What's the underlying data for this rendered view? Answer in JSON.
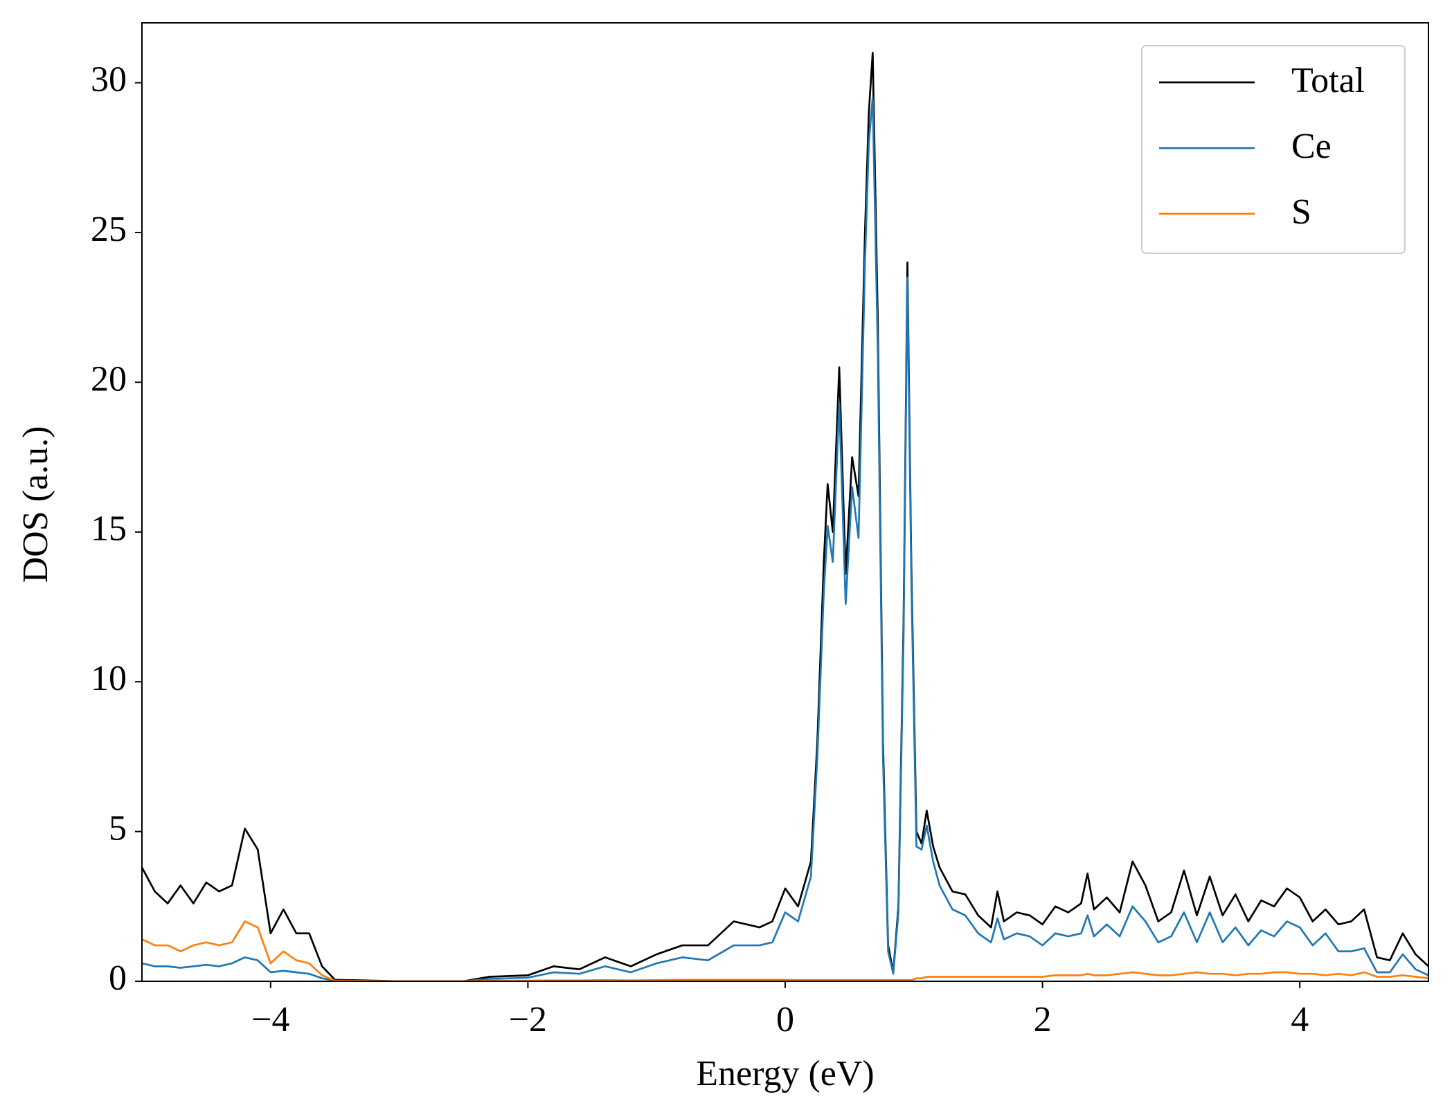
{
  "chart_data": {
    "type": "line",
    "xlabel": "Energy (eV)",
    "ylabel": "DOS (a.u.)",
    "x": [
      -5.0,
      -4.9,
      -4.8,
      -4.7,
      -4.6,
      -4.5,
      -4.4,
      -4.3,
      -4.2,
      -4.1,
      -4.0,
      -3.9,
      -3.8,
      -3.7,
      -3.6,
      -3.5,
      -3.0,
      -2.5,
      -2.3,
      -2.0,
      -1.8,
      -1.6,
      -1.4,
      -1.2,
      -1.0,
      -0.8,
      -0.6,
      -0.4,
      -0.2,
      -0.1,
      0.0,
      0.1,
      0.2,
      0.25,
      0.3,
      0.33,
      0.37,
      0.42,
      0.47,
      0.52,
      0.57,
      0.62,
      0.65,
      0.68,
      0.72,
      0.76,
      0.8,
      0.84,
      0.88,
      0.92,
      0.95,
      0.98,
      1.02,
      1.06,
      1.1,
      1.15,
      1.2,
      1.3,
      1.4,
      1.5,
      1.6,
      1.65,
      1.7,
      1.8,
      1.9,
      2.0,
      2.1,
      2.2,
      2.3,
      2.35,
      2.4,
      2.5,
      2.6,
      2.7,
      2.8,
      2.9,
      3.0,
      3.1,
      3.2,
      3.3,
      3.4,
      3.5,
      3.6,
      3.7,
      3.8,
      3.9,
      4.0,
      4.1,
      4.2,
      4.3,
      4.4,
      4.5,
      4.6,
      4.7,
      4.8,
      4.9,
      5.0
    ],
    "series": [
      {
        "name": "Total",
        "color": "#000000",
        "values": [
          3.8,
          3.0,
          2.6,
          3.2,
          2.6,
          3.3,
          3.0,
          3.2,
          5.1,
          4.4,
          1.6,
          2.4,
          1.6,
          1.6,
          0.5,
          0.05,
          0,
          0,
          0.15,
          0.2,
          0.5,
          0.4,
          0.8,
          0.5,
          0.9,
          1.2,
          1.2,
          2.0,
          1.8,
          2.0,
          3.1,
          2.5,
          4.0,
          8,
          14,
          16.6,
          15.0,
          20.5,
          13.6,
          17.5,
          16.2,
          25,
          29,
          31.0,
          22,
          8,
          1.2,
          0.3,
          2.5,
          12,
          24.0,
          14,
          5.0,
          4.6,
          5.7,
          4.5,
          3.8,
          3.0,
          2.9,
          2.2,
          1.8,
          3.0,
          2.0,
          2.3,
          2.2,
          1.9,
          2.5,
          2.3,
          2.6,
          3.6,
          2.4,
          2.8,
          2.3,
          4.0,
          3.2,
          2.0,
          2.3,
          3.7,
          2.2,
          3.5,
          2.2,
          2.9,
          2.0,
          2.7,
          2.5,
          3.1,
          2.8,
          2.0,
          2.4,
          1.9,
          2.0,
          2.4,
          0.8,
          0.7,
          1.6,
          0.9,
          0.5
        ]
      },
      {
        "name": "Ce",
        "color": "#1f77b4",
        "values": [
          0.6,
          0.5,
          0.5,
          0.45,
          0.5,
          0.55,
          0.5,
          0.6,
          0.8,
          0.7,
          0.3,
          0.35,
          0.3,
          0.25,
          0.1,
          0.02,
          0,
          0,
          0.08,
          0.12,
          0.3,
          0.25,
          0.5,
          0.3,
          0.6,
          0.8,
          0.7,
          1.2,
          1.2,
          1.3,
          2.3,
          2.0,
          3.5,
          7.5,
          13,
          15.2,
          14.0,
          19.3,
          12.6,
          16.5,
          14.8,
          24,
          28,
          29.5,
          21,
          7.5,
          1.0,
          0.25,
          2.3,
          11.5,
          23.5,
          13.5,
          4.5,
          4.4,
          5.2,
          4.0,
          3.2,
          2.4,
          2.2,
          1.6,
          1.3,
          2.1,
          1.4,
          1.6,
          1.5,
          1.2,
          1.6,
          1.5,
          1.6,
          2.2,
          1.5,
          1.9,
          1.5,
          2.5,
          2.0,
          1.3,
          1.5,
          2.3,
          1.3,
          2.3,
          1.3,
          1.8,
          1.2,
          1.7,
          1.5,
          2.0,
          1.8,
          1.2,
          1.6,
          1.0,
          1.0,
          1.1,
          0.3,
          0.3,
          0.9,
          0.4,
          0.2
        ]
      },
      {
        "name": "S",
        "color": "#ff7f0e",
        "values": [
          1.4,
          1.2,
          1.2,
          1.0,
          1.2,
          1.3,
          1.2,
          1.3,
          2.0,
          1.8,
          0.6,
          1.0,
          0.7,
          0.6,
          0.2,
          0.02,
          0,
          0,
          0.02,
          0.02,
          0.03,
          0.03,
          0.04,
          0.03,
          0.04,
          0.05,
          0.05,
          0.05,
          0.05,
          0.05,
          0.05,
          0.04,
          0.04,
          0.04,
          0.04,
          0.04,
          0.04,
          0.04,
          0.04,
          0.04,
          0.04,
          0.04,
          0.04,
          0.04,
          0.04,
          0.04,
          0.04,
          0.04,
          0.04,
          0.04,
          0.04,
          0.04,
          0.1,
          0.1,
          0.15,
          0.15,
          0.15,
          0.15,
          0.15,
          0.15,
          0.15,
          0.15,
          0.15,
          0.15,
          0.15,
          0.15,
          0.2,
          0.2,
          0.2,
          0.25,
          0.2,
          0.2,
          0.25,
          0.3,
          0.25,
          0.2,
          0.2,
          0.25,
          0.3,
          0.25,
          0.25,
          0.2,
          0.25,
          0.25,
          0.3,
          0.3,
          0.25,
          0.25,
          0.2,
          0.25,
          0.2,
          0.3,
          0.15,
          0.15,
          0.2,
          0.15,
          0.1
        ]
      }
    ],
    "xlim": [
      -5,
      5
    ],
    "ylim": [
      0,
      32
    ],
    "xticks": [
      {
        "value": -4,
        "label": "−4"
      },
      {
        "value": -2,
        "label": "−2"
      },
      0,
      2,
      4
    ],
    "yticks": [
      0,
      5,
      10,
      15,
      20,
      25,
      30
    ],
    "legend": "upper right",
    "grid": false
  }
}
